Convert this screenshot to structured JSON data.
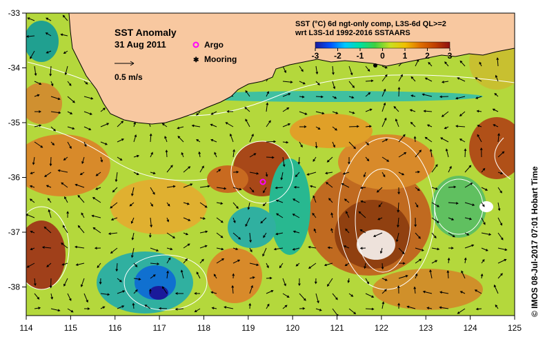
{
  "map": {
    "title": "SST Anomaly",
    "date": "31 Aug 2011",
    "scale_label": "0.5 m/s",
    "legend": [
      {
        "label": "Argo",
        "color": "#ff00ff",
        "symbol": "argo-icon"
      },
      {
        "label": "Mooring",
        "color": "#000000",
        "symbol": "mooring-icon"
      }
    ],
    "colorbar": {
      "line1": "SST (°C) 6d ngt-only comp, L3S-6d QL>=2",
      "line2": "wrt L3S-1d 1992-2016 SSTAARS",
      "ticks": [
        "-3",
        "-2",
        "-1",
        "0",
        "1",
        "2",
        "3"
      ],
      "colors": [
        "#1a1a9a",
        "#0050ff",
        "#00c8ff",
        "#00e0a0",
        "#40d040",
        "#c8e020",
        "#f0c000",
        "#e07000",
        "#c04000",
        "#901010"
      ]
    },
    "x_ticks": [
      "114",
      "115",
      "116",
      "117",
      "118",
      "119",
      "120",
      "121",
      "122",
      "123",
      "124",
      "125"
    ],
    "y_ticks": [
      "-33",
      "-34",
      "-35",
      "-36",
      "-37",
      "-38"
    ],
    "credit": "© IMOS 08-Jul-2017 07:01 Hobart Time",
    "colors": {
      "land": "#f8c8a0",
      "coast": "#000000",
      "contour": "#ffffff",
      "arrow": "#000000",
      "argo": "#ff00ff"
    }
  }
}
